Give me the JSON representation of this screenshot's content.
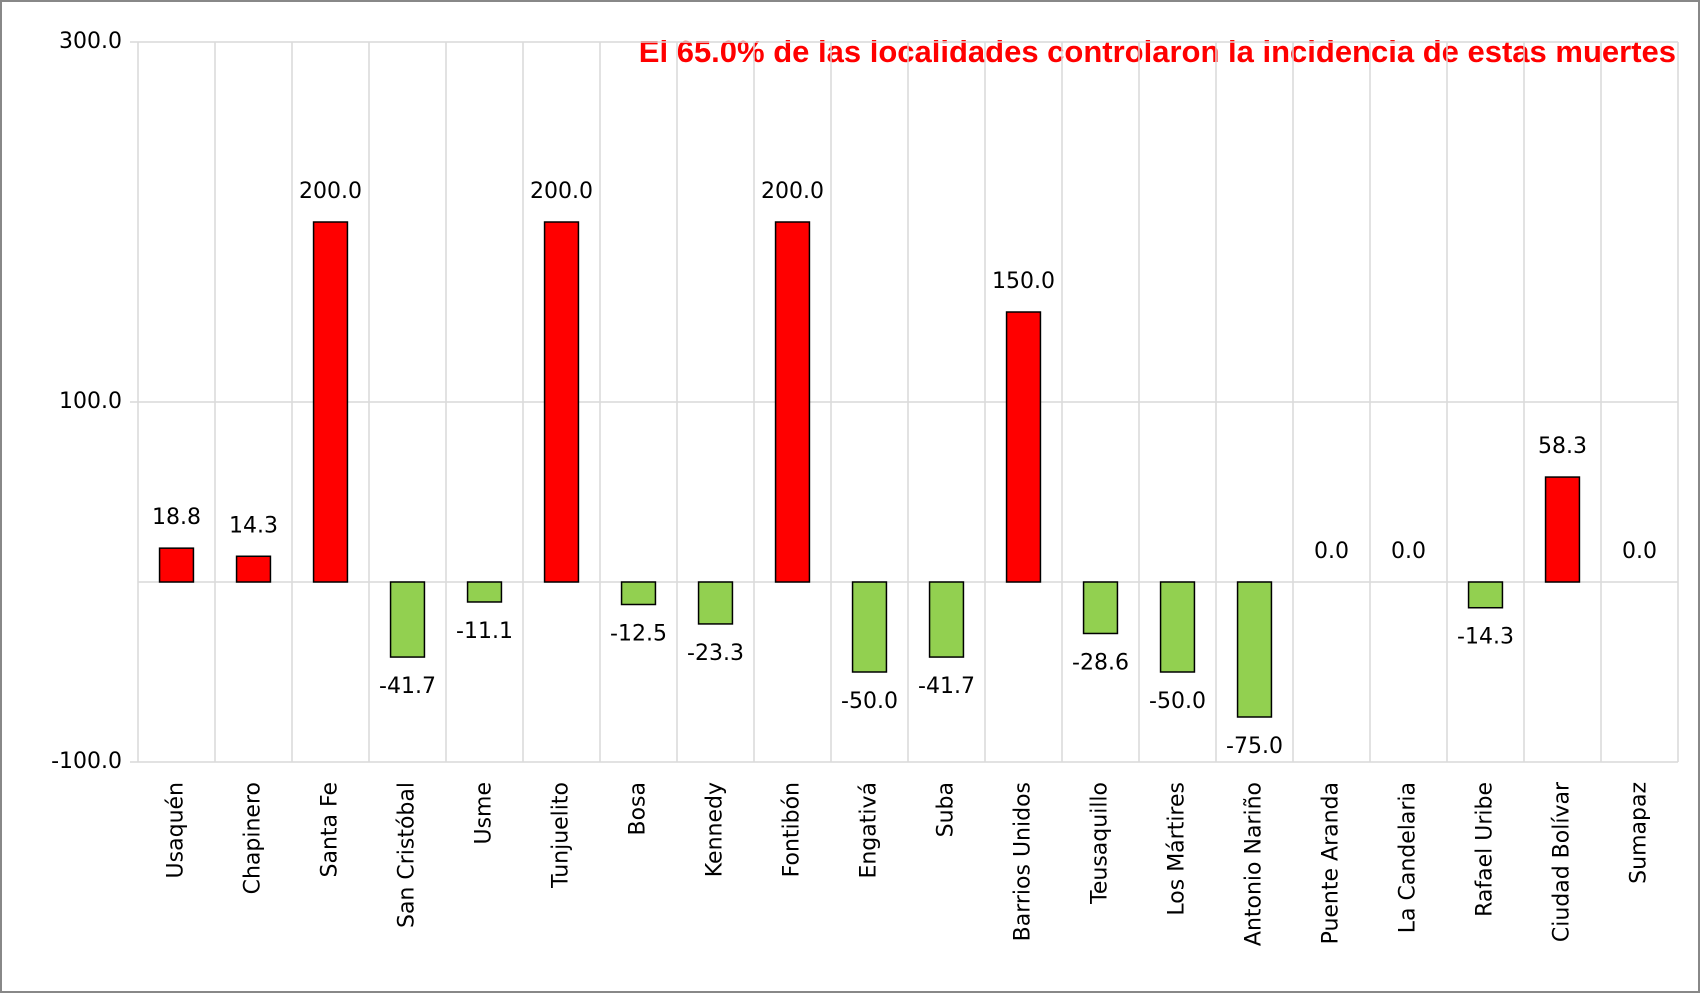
{
  "chart_data": {
    "type": "bar",
    "annotation": "El  65.0% de las localidades controlaron la incidencia de estas muertes",
    "categories": [
      "Usaquén",
      "Chapinero",
      "Santa Fe",
      "San Cristóbal",
      "Usme",
      "Tunjuelito",
      "Bosa",
      "Kennedy",
      "Fontibón",
      "Engativá",
      "Suba",
      "Barrios Unidos",
      "Teusaquillo",
      "Los Mártires",
      "Antonio Nariño",
      "Puente Aranda",
      "La Candelaria",
      "Rafael Uribe",
      "Ciudad Bolívar",
      "Sumapaz"
    ],
    "values": [
      18.8,
      14.3,
      200,
      -41.7,
      -11.1,
      200,
      -12.5,
      -23.3,
      200,
      -50,
      -41.7,
      150,
      -28.6,
      -50,
      -75,
      0,
      0,
      -14.3,
      58.3,
      0
    ],
    "value_labels": [
      "18.8",
      "14.3",
      "200.0",
      "-41.7",
      "-11.1",
      "200.0",
      "-12.5",
      "-23.3",
      "200.0",
      "-50.0",
      "-41.7",
      "150.0",
      "-28.6",
      "-50.0",
      "-75.0",
      "0.0",
      "0.0",
      "-14.3",
      "58.3",
      "0.0"
    ],
    "positive_color": "#ff0000",
    "negative_color": "#92d050",
    "ylim": [
      -100,
      300
    ],
    "yticks": [
      {
        "value": -100,
        "label": "-100.0"
      },
      {
        "value": 100,
        "label": "100.0"
      },
      {
        "value": 300,
        "label": "300.0"
      }
    ],
    "grid": true
  }
}
